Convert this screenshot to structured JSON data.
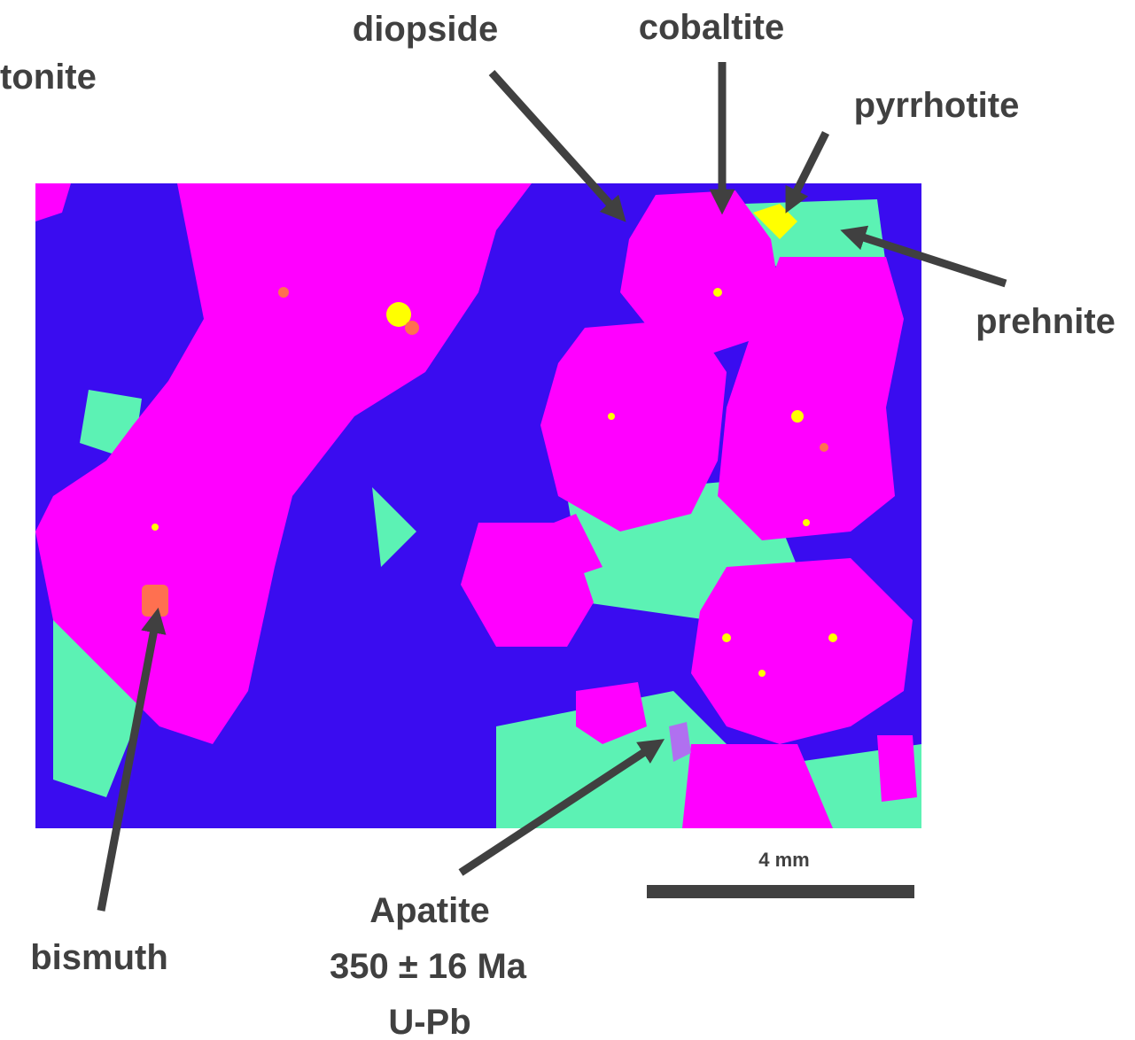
{
  "labels": {
    "partial_left": "tonite",
    "diopside": "diopside",
    "cobaltite": "cobaltite",
    "pyrrhotite": "pyrrhotite",
    "prehnite": "prehnite",
    "bismuth": "bismuth",
    "apatite": [
      "Apatite",
      "350 ± 16 Ma",
      "U-Pb"
    ]
  },
  "scale_bar": {
    "label": "4 mm"
  }
}
